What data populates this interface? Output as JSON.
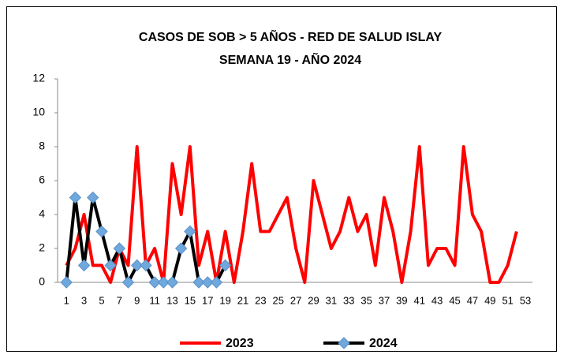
{
  "chart_data": {
    "type": "line",
    "title": "CASOS DE SOB  > 5 AÑOS - RED DE SALUD ISLAY",
    "subtitle": "SEMANA 19 -  AÑO 2024",
    "categories": [
      1,
      null,
      3,
      null,
      5,
      null,
      7,
      null,
      9,
      null,
      11,
      null,
      13,
      null,
      15,
      null,
      17,
      null,
      19,
      null,
      21,
      null,
      23,
      null,
      25,
      null,
      27,
      null,
      29,
      null,
      31,
      null,
      33,
      null,
      35,
      null,
      37,
      null,
      39,
      null,
      41,
      null,
      43,
      null,
      45,
      null,
      47,
      null,
      49,
      null,
      51,
      null,
      53
    ],
    "series": [
      {
        "name": "2023",
        "color": "#ff0000",
        "marker": false,
        "values": [
          1,
          2,
          4,
          1,
          1,
          0,
          2,
          1,
          8,
          1,
          2,
          0,
          7,
          4,
          8,
          1,
          3,
          0,
          3,
          0,
          3,
          7,
          3,
          3,
          4,
          5,
          2,
          0,
          6,
          4,
          2,
          3,
          5,
          3,
          4,
          1,
          5,
          3,
          0,
          3,
          8,
          1,
          2,
          2,
          1,
          8,
          4,
          3,
          0,
          0,
          1,
          3,
          null
        ]
      },
      {
        "name": "2024",
        "color": "#000000",
        "marker": true,
        "marker_color": "#6fa8dc",
        "values": [
          0,
          5,
          1,
          5,
          3,
          1,
          2,
          0,
          1,
          1,
          0,
          0,
          0,
          2,
          3,
          0,
          0,
          0,
          1,
          null,
          null,
          null,
          null,
          null,
          null,
          null,
          null,
          null,
          null,
          null,
          null,
          null,
          null,
          null,
          null,
          null,
          null,
          null,
          null,
          null,
          null,
          null,
          null,
          null,
          null,
          null,
          null,
          null,
          null,
          null,
          null,
          null,
          null
        ]
      }
    ],
    "ylim": [
      0,
      12
    ],
    "yticks": [
      0,
      2,
      4,
      6,
      8,
      10,
      12
    ],
    "grid": false,
    "legend": "bottom"
  }
}
